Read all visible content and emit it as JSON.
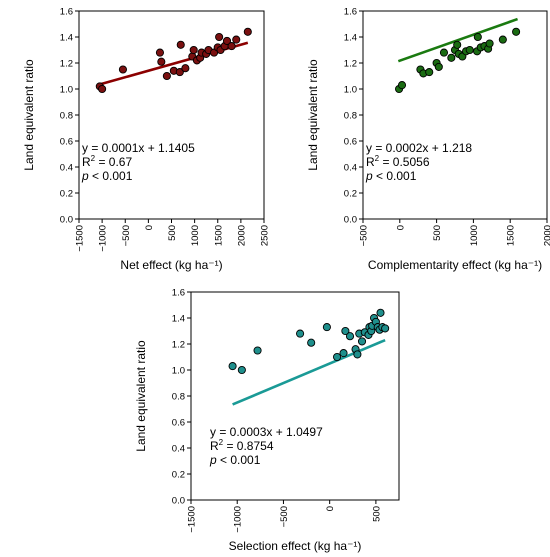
{
  "chart_data": [
    {
      "type": "scatter",
      "xlabel": "Net effect (kg ha⁻¹)",
      "ylabel": "Land equivalent ratio",
      "xlim": [
        -1500,
        2500
      ],
      "ylim": [
        0.0,
        1.6
      ],
      "xticks": [
        -1500,
        -1000,
        -500,
        0,
        500,
        1000,
        1500,
        2000,
        2500
      ],
      "xtick_labels": [
        "−1500",
        "−1000",
        "−500",
        "0",
        "500",
        "1000",
        "1500",
        "2000",
        "2500"
      ],
      "yticks": [
        0.0,
        0.2,
        0.4,
        0.6,
        0.8,
        1.0,
        1.2,
        1.4,
        1.6
      ],
      "ytick_labels": [
        "0.0",
        "0.2",
        "0.4",
        "0.6",
        "0.8",
        "1.0",
        "1.2",
        "1.4",
        "1.6"
      ],
      "point_color": "#7a1010",
      "line_color": "#8b0000",
      "fit": {
        "slope": 0.0001,
        "intercept": 1.1405,
        "x_range": [
          -1050,
          2150
        ]
      },
      "equation": "y = 0.0001x + 1.1405",
      "r2_label": "R",
      "r2_value": " = 0.67",
      "p_label": "p",
      "p_value": " < 0.001",
      "points": [
        {
          "x": -1050,
          "y": 1.02
        },
        {
          "x": -1000,
          "y": 1.0
        },
        {
          "x": -550,
          "y": 1.15
        },
        {
          "x": 250,
          "y": 1.28
        },
        {
          "x": 280,
          "y": 1.21
        },
        {
          "x": 400,
          "y": 1.1
        },
        {
          "x": 550,
          "y": 1.14
        },
        {
          "x": 680,
          "y": 1.13
        },
        {
          "x": 700,
          "y": 1.34
        },
        {
          "x": 800,
          "y": 1.16
        },
        {
          "x": 950,
          "y": 1.25
        },
        {
          "x": 980,
          "y": 1.3
        },
        {
          "x": 1050,
          "y": 1.22
        },
        {
          "x": 1120,
          "y": 1.24
        },
        {
          "x": 1150,
          "y": 1.28
        },
        {
          "x": 1250,
          "y": 1.27
        },
        {
          "x": 1300,
          "y": 1.3
        },
        {
          "x": 1420,
          "y": 1.28
        },
        {
          "x": 1500,
          "y": 1.32
        },
        {
          "x": 1530,
          "y": 1.4
        },
        {
          "x": 1560,
          "y": 1.3
        },
        {
          "x": 1650,
          "y": 1.33
        },
        {
          "x": 1700,
          "y": 1.37
        },
        {
          "x": 1800,
          "y": 1.33
        },
        {
          "x": 1900,
          "y": 1.38
        },
        {
          "x": 2150,
          "y": 1.44
        }
      ]
    },
    {
      "type": "scatter",
      "xlabel": "Complementarity effect (kg ha⁻¹)",
      "ylabel": "Land equivalent ratio",
      "xlim": [
        -500,
        2000
      ],
      "ylim": [
        0.0,
        1.6
      ],
      "xticks": [
        -500,
        0,
        500,
        1000,
        1500,
        2000
      ],
      "xtick_labels": [
        "−500",
        "0",
        "500",
        "1000",
        "1500",
        "2000"
      ],
      "yticks": [
        0.0,
        0.2,
        0.4,
        0.6,
        0.8,
        1.0,
        1.2,
        1.4,
        1.6
      ],
      "ytick_labels": [
        "0.0",
        "0.2",
        "0.4",
        "0.6",
        "0.8",
        "1.0",
        "1.2",
        "1.4",
        "1.6"
      ],
      "point_color": "#1a6b12",
      "line_color": "#1a7a10",
      "fit": {
        "slope": 0.0002,
        "intercept": 1.218,
        "x_range": [
          -20,
          1600
        ]
      },
      "equation": "y = 0.0002x + 1.218",
      "r2_label": "R",
      "r2_value": " = 0.5056",
      "p_label": "p",
      "p_value": " < 0.001",
      "points": [
        {
          "x": -10,
          "y": 1.0
        },
        {
          "x": 30,
          "y": 1.03
        },
        {
          "x": 280,
          "y": 1.15
        },
        {
          "x": 320,
          "y": 1.12
        },
        {
          "x": 400,
          "y": 1.13
        },
        {
          "x": 500,
          "y": 1.2
        },
        {
          "x": 530,
          "y": 1.17
        },
        {
          "x": 600,
          "y": 1.28
        },
        {
          "x": 700,
          "y": 1.24
        },
        {
          "x": 750,
          "y": 1.3
        },
        {
          "x": 780,
          "y": 1.34
        },
        {
          "x": 800,
          "y": 1.27
        },
        {
          "x": 850,
          "y": 1.25
        },
        {
          "x": 900,
          "y": 1.29
        },
        {
          "x": 950,
          "y": 1.3
        },
        {
          "x": 1050,
          "y": 1.29
        },
        {
          "x": 1060,
          "y": 1.4
        },
        {
          "x": 1100,
          "y": 1.32
        },
        {
          "x": 1150,
          "y": 1.33
        },
        {
          "x": 1200,
          "y": 1.31
        },
        {
          "x": 1220,
          "y": 1.35
        },
        {
          "x": 1400,
          "y": 1.38
        },
        {
          "x": 1580,
          "y": 1.44
        }
      ]
    },
    {
      "type": "scatter",
      "xlabel": "Selection effect (kg ha⁻¹)",
      "ylabel": "Land equivalent ratio",
      "xlim": [
        -1500,
        750
      ],
      "ylim": [
        0.0,
        1.6
      ],
      "xticks": [
        -1500,
        -1000,
        -500,
        0,
        500
      ],
      "xtick_labels": [
        "−1500",
        "−1000",
        "−500",
        "0",
        "500"
      ],
      "yticks": [
        0.0,
        0.2,
        0.4,
        0.6,
        0.8,
        1.0,
        1.2,
        1.4,
        1.6
      ],
      "ytick_labels": [
        "0.0",
        "0.2",
        "0.4",
        "0.6",
        "0.8",
        "1.0",
        "1.2",
        "1.4",
        "1.6"
      ],
      "point_color": "#1f8f8c",
      "line_color": "#1a9a96",
      "fit": {
        "slope": 0.0003,
        "intercept": 1.0497,
        "x_range": [
          -1050,
          600
        ]
      },
      "equation": "y = 0.0003x + 1.0497",
      "r2_label": "R",
      "r2_value": " = 0.8754",
      "p_label": "p",
      "p_value": " < 0.001",
      "points": [
        {
          "x": -1050,
          "y": 1.03
        },
        {
          "x": -950,
          "y": 1.0
        },
        {
          "x": -780,
          "y": 1.15
        },
        {
          "x": -320,
          "y": 1.28
        },
        {
          "x": -200,
          "y": 1.21
        },
        {
          "x": -30,
          "y": 1.33
        },
        {
          "x": 80,
          "y": 1.1
        },
        {
          "x": 150,
          "y": 1.13
        },
        {
          "x": 170,
          "y": 1.3
        },
        {
          "x": 220,
          "y": 1.26
        },
        {
          "x": 280,
          "y": 1.16
        },
        {
          "x": 300,
          "y": 1.12
        },
        {
          "x": 320,
          "y": 1.28
        },
        {
          "x": 350,
          "y": 1.22
        },
        {
          "x": 380,
          "y": 1.29
        },
        {
          "x": 420,
          "y": 1.27
        },
        {
          "x": 430,
          "y": 1.33
        },
        {
          "x": 450,
          "y": 1.3
        },
        {
          "x": 460,
          "y": 1.34
        },
        {
          "x": 480,
          "y": 1.4
        },
        {
          "x": 500,
          "y": 1.37
        },
        {
          "x": 520,
          "y": 1.33
        },
        {
          "x": 540,
          "y": 1.31
        },
        {
          "x": 550,
          "y": 1.44
        },
        {
          "x": 570,
          "y": 1.33
        },
        {
          "x": 600,
          "y": 1.32
        }
      ]
    }
  ]
}
